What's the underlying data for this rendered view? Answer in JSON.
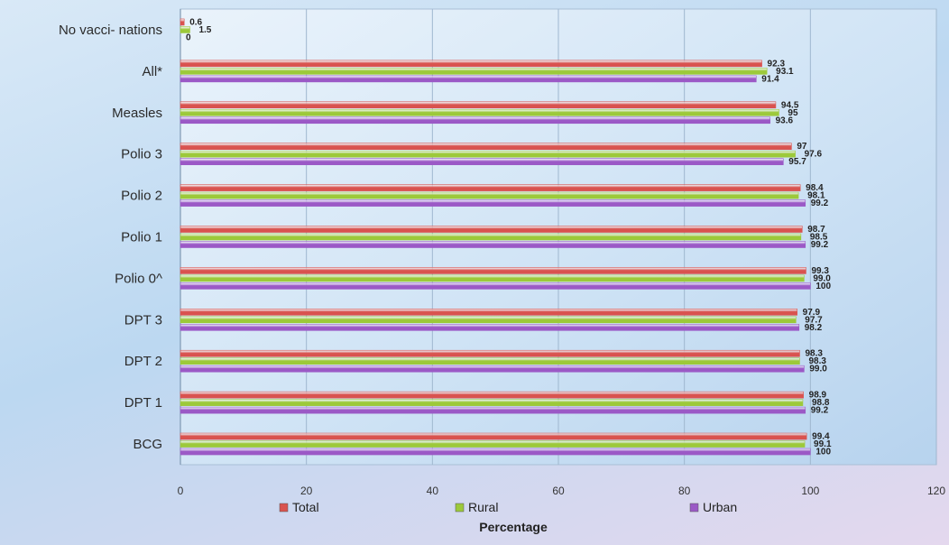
{
  "chart_data": {
    "type": "bar",
    "orientation": "horizontal",
    "categories": [
      "No vacci- nations",
      "All*",
      "Measles",
      "Polio 3",
      "Polio 2",
      "Polio 1",
      "Polio 0^",
      "DPT 3",
      "DPT 2",
      "DPT 1",
      "BCG"
    ],
    "series": [
      {
        "name": "Total",
        "color": "#d9534f",
        "values": [
          0.6,
          92.3,
          94.5,
          97,
          98.4,
          98.7,
          99.3,
          97.9,
          98.3,
          98.9,
          99.4
        ]
      },
      {
        "name": "Rural",
        "color": "#9cc93a",
        "values": [
          1.5,
          93.1,
          95,
          97.6,
          98.1,
          98.5,
          99.0,
          97.7,
          98.3,
          98.8,
          99.1
        ]
      },
      {
        "name": "Urban",
        "color": "#9b59c6",
        "values": [
          0,
          91.4,
          93.6,
          95.7,
          99.2,
          99.2,
          100,
          98.2,
          99.0,
          99.2,
          100
        ]
      }
    ],
    "data_labels": [
      [
        "0.6",
        "1.5",
        "0"
      ],
      [
        "92.3",
        "93.1",
        "91.4"
      ],
      [
        "94.5",
        "95",
        "93.6"
      ],
      [
        "97",
        "97.6",
        "95.7"
      ],
      [
        "98.4",
        "98.1",
        "99.2"
      ],
      [
        "98.7",
        "98.5",
        "99.2"
      ],
      [
        "99.3",
        "99.0",
        "100"
      ],
      [
        "97.9",
        "97.7",
        "98.2"
      ],
      [
        "98.3",
        "98.3",
        "99.0"
      ],
      [
        "98.9",
        "98.8",
        "99.2"
      ],
      [
        "99.4",
        "99.1",
        "100"
      ]
    ],
    "xlim": [
      0,
      120
    ],
    "x_ticks": [
      "0",
      "20",
      "40",
      "60",
      "80",
      "100",
      "120"
    ],
    "xlabel": "Percentage",
    "ylabel": "",
    "title": "",
    "grid": true,
    "legend_position": "bottom"
  }
}
